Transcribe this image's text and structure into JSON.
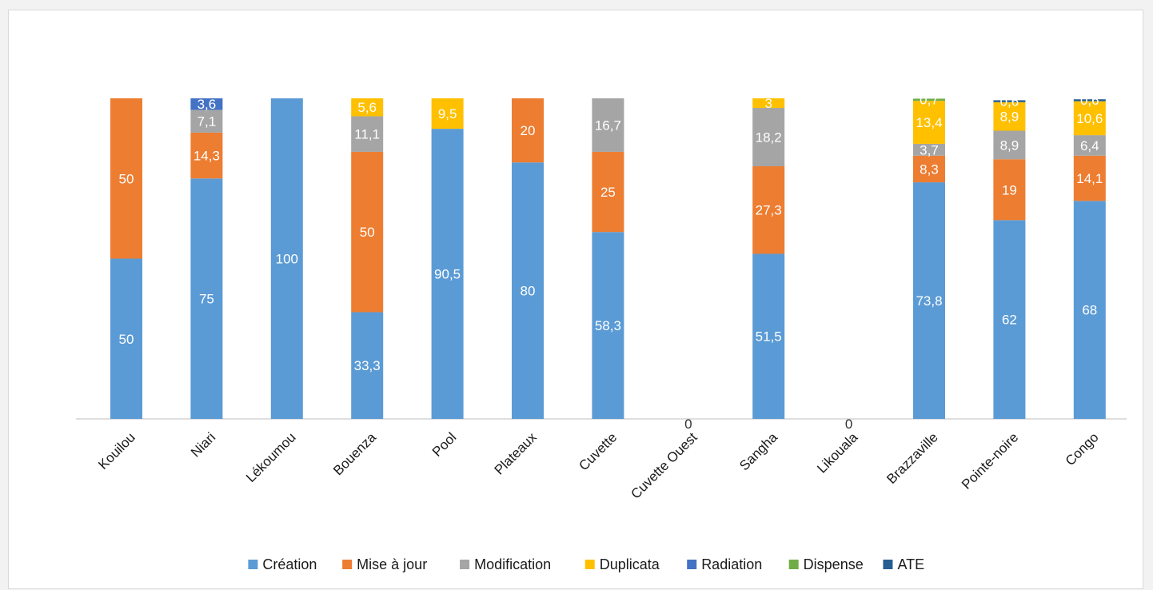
{
  "chart_data": {
    "type": "bar",
    "stacked": true,
    "percent_stacked": true,
    "title": "",
    "xlabel": "",
    "ylabel": "",
    "ylim": [
      0,
      100
    ],
    "grid": false,
    "legend_position": "bottom",
    "categories": [
      "Kouilou",
      "Niari",
      "Lékoumou",
      "Bouenza",
      "Pool",
      "Plateaux",
      "Cuvette",
      "Cuvette Ouest",
      "Sangha",
      "Likouala",
      "Brazzaville",
      "Pointe-noire",
      "Congo"
    ],
    "series": [
      {
        "name": "Création",
        "color": "#5B9BD5",
        "values": [
          50,
          75,
          100,
          33.3,
          90.5,
          80,
          58.3,
          0,
          51.5,
          0,
          73.8,
          62,
          68
        ]
      },
      {
        "name": "Mise à jour",
        "color": "#ED7D31",
        "values": [
          50,
          14.3,
          0,
          50,
          0,
          20,
          25,
          0,
          27.3,
          0,
          8.3,
          19,
          14.1
        ]
      },
      {
        "name": "Modification",
        "color": "#A5A5A5",
        "values": [
          0,
          7.1,
          0,
          11.1,
          0,
          0,
          16.7,
          0,
          18.2,
          0,
          3.7,
          8.9,
          6.4
        ]
      },
      {
        "name": "Duplicata",
        "color": "#FFC000",
        "values": [
          0,
          0,
          0,
          5.6,
          9.5,
          0,
          0,
          0,
          3,
          0,
          13.4,
          8.9,
          10.6
        ]
      },
      {
        "name": "Radiation",
        "color": "#4472C4",
        "values": [
          0,
          3.6,
          0,
          0,
          0,
          0,
          0,
          0,
          0,
          0,
          0,
          0,
          0
        ]
      },
      {
        "name": "Dispense",
        "color": "#70AD47",
        "values": [
          0,
          0,
          0,
          0,
          0,
          0,
          0,
          0,
          0,
          0,
          0.7,
          0,
          0
        ]
      },
      {
        "name": "ATE",
        "color": "#255E91",
        "values": [
          0,
          0,
          0,
          0,
          0,
          0,
          0,
          0,
          0,
          0,
          0,
          0.6,
          0.6
        ]
      }
    ],
    "value_labels": [
      [
        "50",
        "75",
        "100",
        "33,3",
        "90,5",
        "80",
        "58,3",
        "",
        "51,5",
        "",
        "73,8",
        "62",
        "68"
      ],
      [
        "50",
        "14,3",
        "",
        "50",
        "",
        "20",
        "25",
        "",
        "27,3",
        "",
        "8,3",
        "19",
        "14,1"
      ],
      [
        "",
        "7,1",
        "",
        "11,1",
        "",
        "",
        "16,7",
        "",
        "18,2",
        "",
        "3,7",
        "8,9",
        "6,4"
      ],
      [
        "",
        "",
        "",
        "5,6",
        "9,5",
        "",
        "",
        "",
        "3",
        "",
        "13,4",
        "8,9",
        "10,6"
      ],
      [
        "",
        "3,6",
        "",
        "",
        "",
        "",
        "",
        "",
        "",
        "",
        "",
        "",
        ""
      ],
      [
        "",
        "",
        "",
        "",
        "",
        "",
        "",
        "",
        "",
        "",
        "0,7",
        "",
        ""
      ],
      [
        "",
        "",
        "",
        "",
        "",
        "",
        "",
        "",
        "",
        "",
        "",
        "0,6",
        "0,6"
      ]
    ],
    "zero_labels": [
      "",
      "",
      "",
      "",
      "",
      "",
      "",
      "0",
      "",
      "0",
      "",
      "",
      ""
    ]
  }
}
